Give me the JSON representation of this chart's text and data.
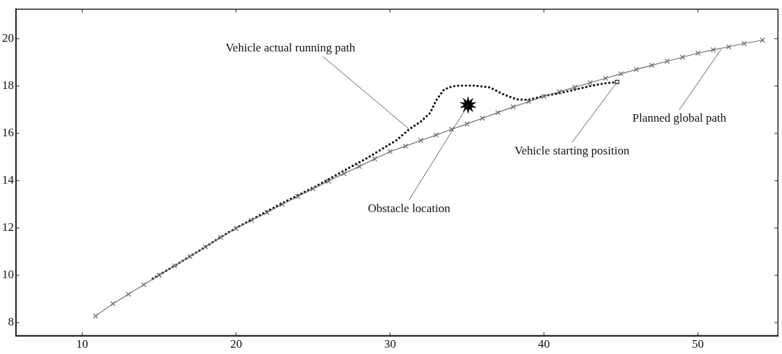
{
  "chart_data": {
    "type": "line",
    "xlim": [
      5.7,
      55.2
    ],
    "ylim": [
      7.45,
      21.25
    ],
    "xticks": [
      10,
      20,
      30,
      40,
      50
    ],
    "yticks": [
      8,
      10,
      12,
      14,
      16,
      18,
      20
    ],
    "grid": false,
    "legend": false,
    "series": [
      {
        "color": "#6e6e6e",
        "marker": "cross",
        "line_style": "solid",
        "x": [
          10.87,
          12,
          13,
          14,
          15,
          16,
          17,
          18,
          19,
          20,
          21,
          22,
          23,
          24,
          25,
          26,
          27,
          28,
          29,
          30,
          31,
          32,
          33,
          34,
          35,
          36,
          37,
          38,
          39,
          40,
          41,
          42,
          43,
          44,
          45,
          46,
          47,
          48,
          49,
          50,
          51,
          52,
          53,
          54.2
        ],
        "values": [
          8.28,
          8.8,
          9.2,
          9.6,
          10.0,
          10.4,
          10.8,
          11.2,
          11.6,
          11.98,
          12.32,
          12.65,
          13.0,
          13.33,
          13.66,
          13.98,
          14.3,
          14.6,
          14.92,
          15.23,
          15.46,
          15.7,
          15.93,
          16.17,
          16.4,
          16.64,
          16.88,
          17.12,
          17.34,
          17.56,
          17.76,
          17.95,
          18.14,
          18.33,
          18.52,
          18.7,
          18.88,
          19.05,
          19.22,
          19.39,
          19.53,
          19.66,
          19.8,
          19.94
        ]
      },
      {
        "color": "#111111",
        "marker": "none",
        "line_style": "dotted",
        "x": [
          44.75,
          44,
          43,
          42,
          41,
          40,
          39,
          38.2,
          37.4,
          36.5,
          35.5,
          34.5,
          34,
          33.5,
          33,
          32.6,
          32,
          31.3,
          30.4,
          29.5,
          28.5,
          27.5,
          26,
          25,
          24,
          23,
          22,
          21,
          20,
          19,
          18,
          17,
          16,
          15,
          14.5
        ],
        "values": [
          18.17,
          18.12,
          18.0,
          17.85,
          17.7,
          17.58,
          17.42,
          17.44,
          17.64,
          17.94,
          18.02,
          18.02,
          17.98,
          17.85,
          17.4,
          16.86,
          16.5,
          16.2,
          15.7,
          15.35,
          14.95,
          14.6,
          14.05,
          13.7,
          13.38,
          13.05,
          12.7,
          12.35,
          12.0,
          11.62,
          11.2,
          10.8,
          10.4,
          10.02,
          9.82
        ]
      },
      {
        "type": "scatter",
        "color": "#000000",
        "marker": "star",
        "x": [
          35.07
        ],
        "values": [
          17.2
        ]
      },
      {
        "type": "scatter",
        "color": "#333333",
        "marker": "square",
        "x": [
          44.75
        ],
        "values": [
          18.17
        ]
      }
    ],
    "annotations": [
      {
        "text": "Vehicle actual running path",
        "x": 31.2,
        "y": 16.2
      },
      {
        "text": "Obstacle location",
        "x": 35.07,
        "y": 17.2
      },
      {
        "text": "Vehicle starting position",
        "x": 44.75,
        "y": 18.17
      },
      {
        "text": "Planned global path",
        "x": 51.5,
        "y": 19.55
      }
    ]
  }
}
